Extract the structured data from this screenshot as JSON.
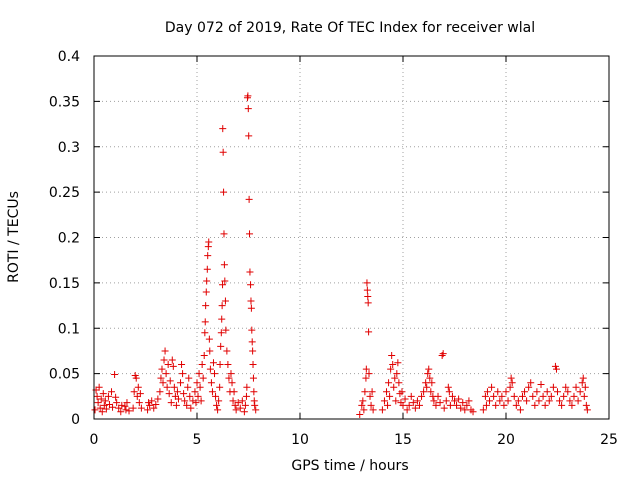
{
  "chart_data": {
    "type": "scatter",
    "title": "Day 072 of 2019, Rate Of TEC Index for receiver wlal",
    "xlabel": "GPS time / hours",
    "ylabel": "ROTI / TECUs",
    "xlim": [
      0,
      25
    ],
    "ylim": [
      0,
      0.4
    ],
    "x_ticks": [
      0,
      5,
      10,
      15,
      20,
      25
    ],
    "x_tick_labels": [
      "0",
      "5",
      "10",
      "15",
      "20",
      "25"
    ],
    "y_ticks": [
      0,
      0.05,
      0.1,
      0.15,
      0.2,
      0.25,
      0.3,
      0.35,
      0.4
    ],
    "y_tick_labels": [
      "0",
      "0.05",
      "0.1",
      "0.15",
      "0.2",
      "0.25",
      "0.3",
      "0.35",
      "0.4"
    ],
    "grid": true,
    "marker": "+",
    "color": "#e00000",
    "series": [
      {
        "name": "ROTI",
        "points": [
          [
            0.05,
            0.01
          ],
          [
            0.1,
            0.032
          ],
          [
            0.15,
            0.025
          ],
          [
            0.2,
            0.018
          ],
          [
            0.25,
            0.035
          ],
          [
            0.3,
            0.012
          ],
          [
            0.35,
            0.022
          ],
          [
            0.4,
            0.008
          ],
          [
            0.45,
            0.028
          ],
          [
            0.5,
            0.015
          ],
          [
            0.55,
            0.02
          ],
          [
            0.6,
            0.011
          ],
          [
            0.7,
            0.025
          ],
          [
            0.75,
            0.016
          ],
          [
            0.85,
            0.03
          ],
          [
            0.9,
            0.013
          ],
          [
            1.0,
            0.049
          ],
          [
            1.05,
            0.024
          ],
          [
            1.1,
            0.018
          ],
          [
            1.2,
            0.012
          ],
          [
            1.3,
            0.008
          ],
          [
            1.35,
            0.015
          ],
          [
            1.5,
            0.014
          ],
          [
            1.55,
            0.01
          ],
          [
            1.6,
            0.018
          ],
          [
            1.7,
            0.009
          ],
          [
            1.9,
            0.012
          ],
          [
            1.95,
            0.03
          ],
          [
            2.0,
            0.048
          ],
          [
            2.05,
            0.045
          ],
          [
            2.1,
            0.025
          ],
          [
            2.15,
            0.035
          ],
          [
            2.2,
            0.018
          ],
          [
            2.25,
            0.028
          ],
          [
            2.3,
            0.012
          ],
          [
            2.6,
            0.01
          ],
          [
            2.65,
            0.018
          ],
          [
            2.7,
            0.015
          ],
          [
            2.8,
            0.02
          ],
          [
            2.9,
            0.012
          ],
          [
            3.0,
            0.016
          ],
          [
            3.1,
            0.022
          ],
          [
            3.2,
            0.03
          ],
          [
            3.25,
            0.045
          ],
          [
            3.3,
            0.055
          ],
          [
            3.35,
            0.04
          ],
          [
            3.4,
            0.065
          ],
          [
            3.45,
            0.075
          ],
          [
            3.5,
            0.05
          ],
          [
            3.55,
            0.035
          ],
          [
            3.6,
            0.06
          ],
          [
            3.65,
            0.028
          ],
          [
            3.7,
            0.042
          ],
          [
            3.75,
            0.018
          ],
          [
            3.8,
            0.065
          ],
          [
            3.85,
            0.058
          ],
          [
            3.9,
            0.035
          ],
          [
            3.95,
            0.025
          ],
          [
            4.0,
            0.015
          ],
          [
            4.05,
            0.03
          ],
          [
            4.1,
            0.022
          ],
          [
            4.2,
            0.04
          ],
          [
            4.25,
            0.06
          ],
          [
            4.3,
            0.05
          ],
          [
            4.35,
            0.028
          ],
          [
            4.4,
            0.02
          ],
          [
            4.5,
            0.015
          ],
          [
            4.55,
            0.035
          ],
          [
            4.6,
            0.045
          ],
          [
            4.65,
            0.025
          ],
          [
            4.7,
            0.012
          ],
          [
            4.8,
            0.02
          ],
          [
            4.9,
            0.03
          ],
          [
            4.95,
            0.018
          ],
          [
            5.0,
            0.04
          ],
          [
            5.05,
            0.025
          ],
          [
            5.1,
            0.05
          ],
          [
            5.15,
            0.035
          ],
          [
            5.2,
            0.02
          ],
          [
            5.25,
            0.06
          ],
          [
            5.3,
            0.045
          ],
          [
            5.35,
            0.07
          ],
          [
            5.38,
            0.095
          ],
          [
            5.4,
            0.107
          ],
          [
            5.42,
            0.125
          ],
          [
            5.45,
            0.14
          ],
          [
            5.47,
            0.152
          ],
          [
            5.5,
            0.165
          ],
          [
            5.52,
            0.18
          ],
          [
            5.55,
            0.19
          ],
          [
            5.57,
            0.195
          ],
          [
            5.6,
            0.088
          ],
          [
            5.62,
            0.075
          ],
          [
            5.65,
            0.055
          ],
          [
            5.7,
            0.04
          ],
          [
            5.75,
            0.03
          ],
          [
            5.8,
            0.062
          ],
          [
            5.85,
            0.05
          ],
          [
            5.9,
            0.025
          ],
          [
            5.95,
            0.015
          ],
          [
            6.0,
            0.01
          ],
          [
            6.05,
            0.02
          ],
          [
            6.1,
            0.035
          ],
          [
            6.12,
            0.06
          ],
          [
            6.15,
            0.08
          ],
          [
            6.18,
            0.095
          ],
          [
            6.2,
            0.11
          ],
          [
            6.22,
            0.125
          ],
          [
            6.24,
            0.148
          ],
          [
            6.25,
            0.32
          ],
          [
            6.27,
            0.294
          ],
          [
            6.29,
            0.25
          ],
          [
            6.31,
            0.204
          ],
          [
            6.33,
            0.17
          ],
          [
            6.35,
            0.152
          ],
          [
            6.38,
            0.13
          ],
          [
            6.4,
            0.098
          ],
          [
            6.45,
            0.075
          ],
          [
            6.5,
            0.06
          ],
          [
            6.55,
            0.045
          ],
          [
            6.6,
            0.03
          ],
          [
            6.65,
            0.05
          ],
          [
            6.7,
            0.04
          ],
          [
            6.75,
            0.02
          ],
          [
            6.8,
            0.03
          ],
          [
            6.85,
            0.015
          ],
          [
            6.9,
            0.01
          ],
          [
            7.0,
            0.018
          ],
          [
            7.1,
            0.012
          ],
          [
            7.2,
            0.02
          ],
          [
            7.3,
            0.008
          ],
          [
            7.35,
            0.015
          ],
          [
            7.4,
            0.025
          ],
          [
            7.42,
            0.035
          ],
          [
            7.45,
            0.354
          ],
          [
            7.47,
            0.356
          ],
          [
            7.49,
            0.342
          ],
          [
            7.51,
            0.312
          ],
          [
            7.53,
            0.242
          ],
          [
            7.55,
            0.204
          ],
          [
            7.57,
            0.162
          ],
          [
            7.6,
            0.148
          ],
          [
            7.62,
            0.13
          ],
          [
            7.64,
            0.122
          ],
          [
            7.66,
            0.098
          ],
          [
            7.68,
            0.085
          ],
          [
            7.7,
            0.075
          ],
          [
            7.72,
            0.06
          ],
          [
            7.74,
            0.045
          ],
          [
            7.76,
            0.03
          ],
          [
            7.78,
            0.02
          ],
          [
            7.8,
            0.015
          ],
          [
            7.85,
            0.01
          ],
          [
            12.9,
            0.005
          ],
          [
            13.0,
            0.015
          ],
          [
            13.05,
            0.02
          ],
          [
            13.1,
            0.01
          ],
          [
            13.15,
            0.03
          ],
          [
            13.2,
            0.045
          ],
          [
            13.22,
            0.055
          ],
          [
            13.25,
            0.15
          ],
          [
            13.27,
            0.142
          ],
          [
            13.29,
            0.135
          ],
          [
            13.31,
            0.128
          ],
          [
            13.33,
            0.096
          ],
          [
            13.35,
            0.05
          ],
          [
            13.4,
            0.025
          ],
          [
            13.45,
            0.015
          ],
          [
            13.5,
            0.03
          ],
          [
            13.55,
            0.01
          ],
          [
            14.0,
            0.01
          ],
          [
            14.1,
            0.02
          ],
          [
            14.2,
            0.03
          ],
          [
            14.25,
            0.015
          ],
          [
            14.3,
            0.04
          ],
          [
            14.35,
            0.025
          ],
          [
            14.4,
            0.055
          ],
          [
            14.45,
            0.07
          ],
          [
            14.5,
            0.06
          ],
          [
            14.55,
            0.035
          ],
          [
            14.6,
            0.045
          ],
          [
            14.65,
            0.02
          ],
          [
            14.7,
            0.05
          ],
          [
            14.75,
            0.062
          ],
          [
            14.8,
            0.04
          ],
          [
            14.85,
            0.028
          ],
          [
            14.9,
            0.018
          ],
          [
            14.95,
            0.03
          ],
          [
            15.0,
            0.015
          ],
          [
            15.1,
            0.022
          ],
          [
            15.2,
            0.01
          ],
          [
            15.3,
            0.015
          ],
          [
            15.4,
            0.025
          ],
          [
            15.5,
            0.018
          ],
          [
            15.6,
            0.012
          ],
          [
            15.7,
            0.02
          ],
          [
            15.8,
            0.015
          ],
          [
            15.9,
            0.025
          ],
          [
            16.0,
            0.03
          ],
          [
            16.1,
            0.04
          ],
          [
            16.15,
            0.035
          ],
          [
            16.2,
            0.05
          ],
          [
            16.25,
            0.055
          ],
          [
            16.3,
            0.045
          ],
          [
            16.35,
            0.03
          ],
          [
            16.4,
            0.04
          ],
          [
            16.45,
            0.025
          ],
          [
            16.5,
            0.02
          ],
          [
            16.6,
            0.015
          ],
          [
            16.7,
            0.025
          ],
          [
            16.8,
            0.018
          ],
          [
            16.9,
            0.07
          ],
          [
            16.95,
            0.072
          ],
          [
            17.0,
            0.012
          ],
          [
            17.1,
            0.02
          ],
          [
            17.2,
            0.035
          ],
          [
            17.25,
            0.03
          ],
          [
            17.3,
            0.015
          ],
          [
            17.4,
            0.025
          ],
          [
            17.5,
            0.02
          ],
          [
            17.6,
            0.015
          ],
          [
            17.7,
            0.022
          ],
          [
            17.8,
            0.012
          ],
          [
            17.9,
            0.018
          ],
          [
            18.0,
            0.01
          ],
          [
            18.1,
            0.015
          ],
          [
            18.2,
            0.02
          ],
          [
            18.3,
            0.01
          ],
          [
            18.4,
            0.008
          ],
          [
            18.9,
            0.01
          ],
          [
            19.0,
            0.025
          ],
          [
            19.05,
            0.015
          ],
          [
            19.1,
            0.03
          ],
          [
            19.2,
            0.02
          ],
          [
            19.3,
            0.035
          ],
          [
            19.4,
            0.025
          ],
          [
            19.5,
            0.015
          ],
          [
            19.6,
            0.03
          ],
          [
            19.7,
            0.02
          ],
          [
            19.8,
            0.025
          ],
          [
            19.9,
            0.015
          ],
          [
            20.0,
            0.03
          ],
          [
            20.1,
            0.02
          ],
          [
            20.2,
            0.035
          ],
          [
            20.25,
            0.045
          ],
          [
            20.3,
            0.04
          ],
          [
            20.4,
            0.025
          ],
          [
            20.5,
            0.015
          ],
          [
            20.6,
            0.02
          ],
          [
            20.7,
            0.01
          ],
          [
            20.8,
            0.025
          ],
          [
            20.9,
            0.03
          ],
          [
            21.0,
            0.02
          ],
          [
            21.1,
            0.035
          ],
          [
            21.2,
            0.04
          ],
          [
            21.3,
            0.025
          ],
          [
            21.4,
            0.015
          ],
          [
            21.5,
            0.03
          ],
          [
            21.6,
            0.02
          ],
          [
            21.7,
            0.038
          ],
          [
            21.8,
            0.025
          ],
          [
            21.9,
            0.015
          ],
          [
            22.0,
            0.03
          ],
          [
            22.1,
            0.02
          ],
          [
            22.2,
            0.025
          ],
          [
            22.3,
            0.035
          ],
          [
            22.4,
            0.058
          ],
          [
            22.45,
            0.055
          ],
          [
            22.5,
            0.03
          ],
          [
            22.6,
            0.02
          ],
          [
            22.7,
            0.015
          ],
          [
            22.8,
            0.025
          ],
          [
            22.9,
            0.035
          ],
          [
            23.0,
            0.03
          ],
          [
            23.1,
            0.02
          ],
          [
            23.2,
            0.015
          ],
          [
            23.3,
            0.025
          ],
          [
            23.4,
            0.035
          ],
          [
            23.5,
            0.02
          ],
          [
            23.6,
            0.03
          ],
          [
            23.7,
            0.04
          ],
          [
            23.75,
            0.045
          ],
          [
            23.8,
            0.025
          ],
          [
            23.85,
            0.035
          ],
          [
            23.9,
            0.015
          ],
          [
            23.95,
            0.01
          ]
        ]
      }
    ]
  }
}
